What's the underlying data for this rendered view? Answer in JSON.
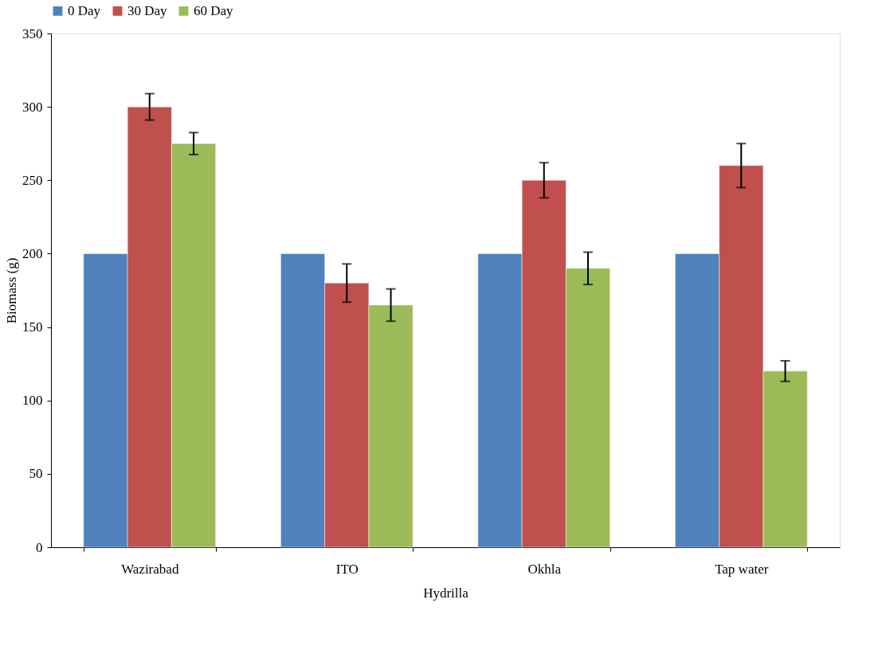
{
  "chart_data": {
    "type": "bar",
    "xlabel": "Hydrilla",
    "ylabel": "Biomass (g)",
    "categories": [
      "Wazirabad",
      "ITO",
      "Okhla",
      "Tap water"
    ],
    "series": [
      {
        "name": "0 Day",
        "color": "#4f81bd",
        "values": [
          200,
          200,
          200,
          200
        ]
      },
      {
        "name": "30 Day",
        "color": "#c0504d",
        "values": [
          300,
          180,
          250,
          260
        ],
        "errors": [
          9,
          13,
          12,
          15
        ]
      },
      {
        "name": "60 Day",
        "color": "#9bbb59",
        "values": [
          275,
          165,
          190,
          120
        ],
        "errors": [
          7.5,
          11,
          11,
          7
        ]
      }
    ],
    "ylim": [
      0,
      350
    ],
    "yticks": [
      0,
      50,
      100,
      150,
      200,
      250,
      300,
      350
    ],
    "grid": false,
    "legend": "top"
  }
}
